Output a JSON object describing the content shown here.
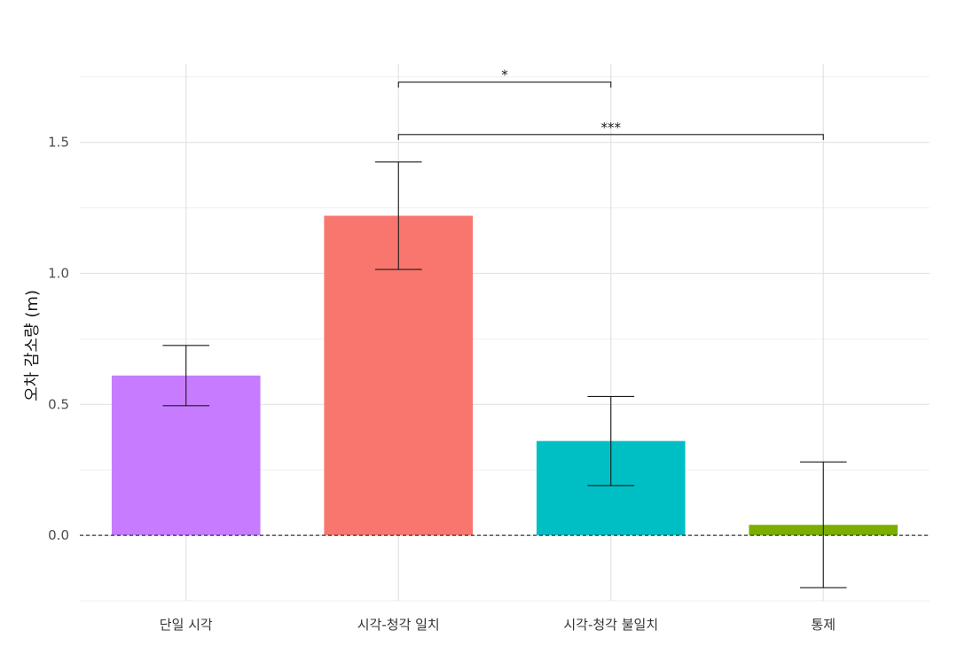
{
  "chart_data": {
    "type": "bar",
    "title": "",
    "xlabel": "",
    "ylabel": "오차 감소량 (m)",
    "categories": [
      "단일 시각",
      "시각-청각 일치",
      "시각-청각 불일치",
      "통제"
    ],
    "values": [
      0.61,
      1.22,
      0.36,
      0.04
    ],
    "error_low": [
      0.495,
      1.015,
      0.19,
      -0.2
    ],
    "error_high": [
      0.725,
      1.425,
      0.53,
      0.28
    ],
    "colors": [
      "#C77CFF",
      "#F8766D",
      "#00BFC4",
      "#7CAE00"
    ],
    "ylim": [
      -0.25,
      1.8
    ],
    "y_ticks": [
      "0.0",
      "0.5",
      "1.0",
      "1.5"
    ],
    "y_tick_values": [
      0.0,
      0.5,
      1.0,
      1.5
    ],
    "reference_line": 0.0,
    "grid": true,
    "legend": "none",
    "significance": [
      {
        "from": "시각-청각 일치",
        "to": "시각-청각 불일치",
        "y": 1.73,
        "label": "*"
      },
      {
        "from": "시각-청각 일치",
        "to": "통제",
        "y": 1.53,
        "label": "***"
      }
    ]
  }
}
